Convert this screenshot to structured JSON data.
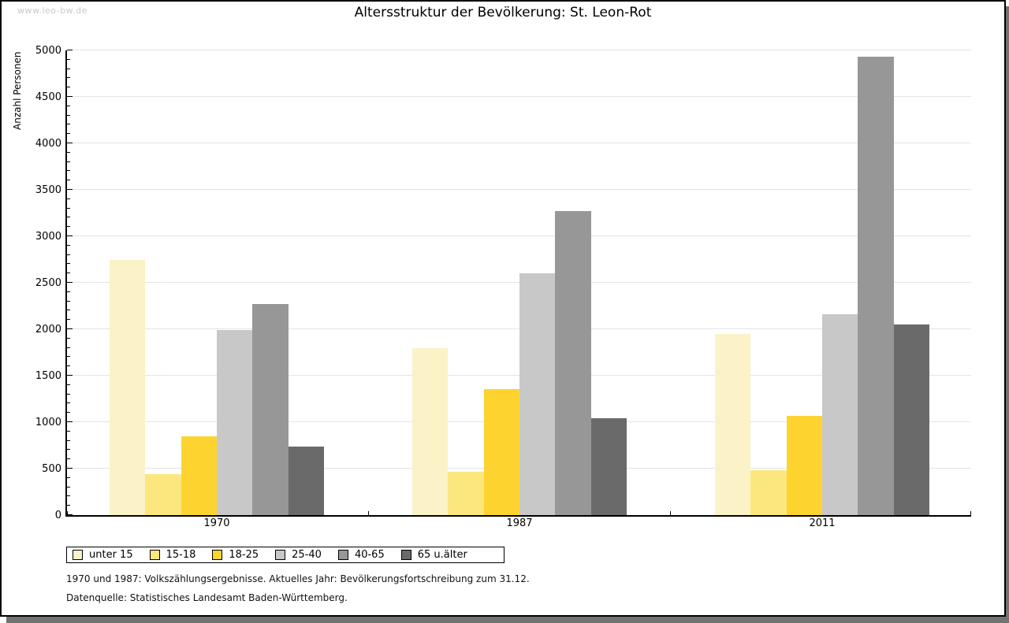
{
  "watermark": "www.leo-bw.de",
  "footnotes": [
    "1970 und 1987: Volkszählungsergebnisse. Aktuelles Jahr: Bevölkerungsfortschreibung zum 31.12.",
    "Datenquelle: Statistisches Landesamt Baden-Württemberg."
  ],
  "chart_data": {
    "type": "bar",
    "title": "Altersstruktur der Bevölkerung: St. Leon-Rot",
    "ylabel": "Anzahl Personen",
    "xlabel": "",
    "categories": [
      "1970",
      "1987",
      "2011"
    ],
    "series": [
      {
        "name": "unter 15",
        "color": "#FBF2C8",
        "values": [
          2750,
          1800,
          1950
        ]
      },
      {
        "name": "15-18",
        "color": "#FBE77D",
        "values": [
          440,
          470,
          480
        ]
      },
      {
        "name": "18-25",
        "color": "#FDD42F",
        "values": [
          850,
          1360,
          1070
        ]
      },
      {
        "name": "25-40",
        "color": "#C8C8C8",
        "values": [
          1990,
          2600,
          2160
        ]
      },
      {
        "name": "40-65",
        "color": "#979797",
        "values": [
          2270,
          3270,
          4930
        ]
      },
      {
        "name": "65 u.älter",
        "color": "#6A6A6A",
        "values": [
          740,
          1040,
          2050
        ]
      }
    ],
    "ylim": [
      0,
      5000
    ],
    "ytick_step": 500,
    "yminor_step": 100,
    "grid": true,
    "legend_position": "bottom"
  }
}
